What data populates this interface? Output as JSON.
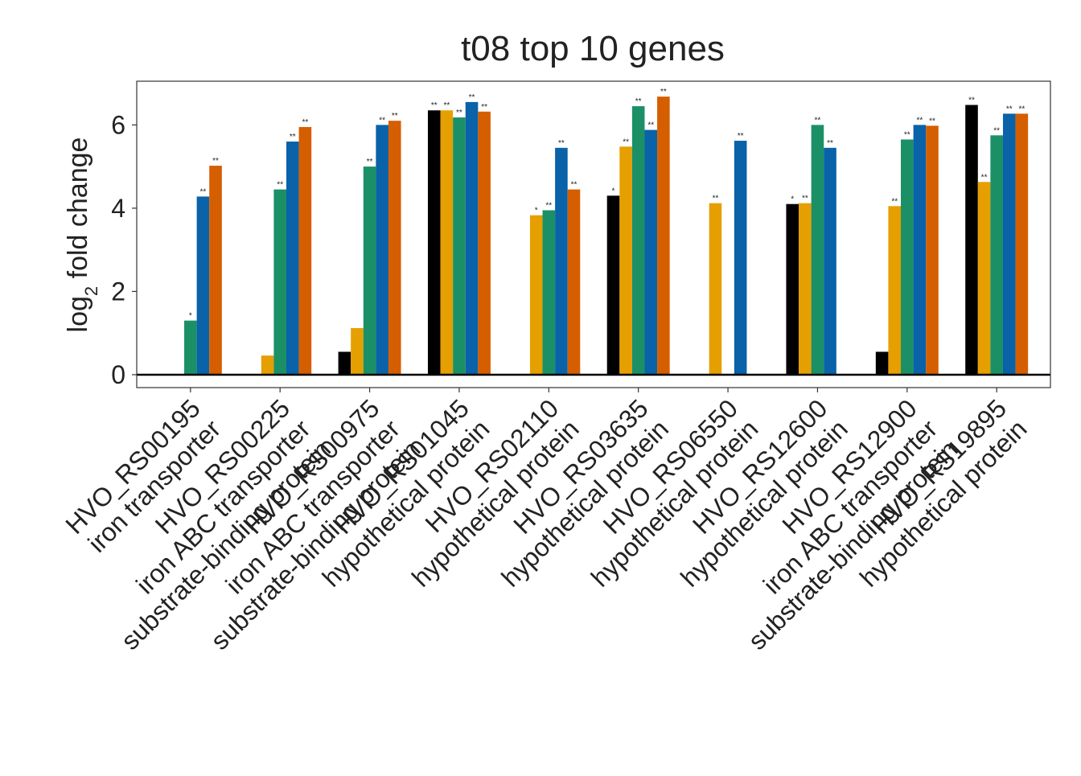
{
  "chart_data": {
    "type": "bar",
    "title": "t08 top 10 genes",
    "ylabel": {
      "base": "log",
      "subscript": "2",
      "rest": " fold change"
    },
    "categories": [
      [
        "HVO_RS00195",
        "iron transporter"
      ],
      [
        "HVO_RS00225",
        "iron ABC transporter",
        "substrate-binding protein"
      ],
      [
        "HVO_RS00975",
        "iron ABC transporter",
        "substrate-binding protein"
      ],
      [
        "HVO_RS01045",
        "hypothetical protein"
      ],
      [
        "HVO_RS02110",
        "hypothetical protein"
      ],
      [
        "HVO_RS03635",
        "hypothetical protein"
      ],
      [
        "HVO_RS06550",
        "hypothetical protein"
      ],
      [
        "HVO_RS12600",
        "hypothetical protein"
      ],
      [
        "HVO_RS12900",
        "iron ABC transporter",
        "substrate-binding protein"
      ],
      [
        "HVO_RS19895",
        "hypothetical protein"
      ]
    ],
    "series": [
      {
        "color": "#000000",
        "values": [
          null,
          null,
          0.55,
          6.35,
          null,
          4.3,
          null,
          4.1,
          0.55,
          6.48
        ],
        "labels": [
          null,
          null,
          null,
          "**",
          null,
          "*",
          null,
          "*",
          null,
          "**"
        ]
      },
      {
        "color": "#e69f00",
        "values": [
          null,
          0.46,
          1.12,
          6.35,
          3.83,
          5.48,
          4.12,
          4.12,
          4.05,
          4.63
        ],
        "labels": [
          null,
          null,
          null,
          "**",
          "*",
          "**",
          "**",
          "**",
          "**",
          "**"
        ]
      },
      {
        "color": "#1b9066",
        "values": [
          1.3,
          4.45,
          5.0,
          6.18,
          3.95,
          6.45,
          null,
          6.0,
          5.65,
          5.75
        ],
        "labels": [
          "*",
          "**",
          "**",
          "**",
          "**",
          "**",
          null,
          "**",
          "**",
          "**"
        ]
      },
      {
        "color": "#0a62a8",
        "values": [
          4.28,
          5.6,
          6.0,
          6.55,
          5.45,
          5.88,
          5.62,
          5.45,
          6.0,
          6.27
        ],
        "labels": [
          "**",
          "**",
          "**",
          "**",
          "**",
          "**",
          "**",
          "**",
          "**",
          "**"
        ]
      },
      {
        "color": "#d55e00",
        "values": [
          5.02,
          5.95,
          6.1,
          6.32,
          4.45,
          6.68,
          null,
          null,
          5.98,
          6.27
        ],
        "labels": [
          "**",
          "**",
          "**",
          "**",
          "**",
          "**",
          null,
          null,
          "**",
          "**"
        ]
      }
    ],
    "ylim": [
      -0.31,
      7.05
    ],
    "yticks": [
      0,
      2,
      4,
      6
    ],
    "grid": false
  }
}
